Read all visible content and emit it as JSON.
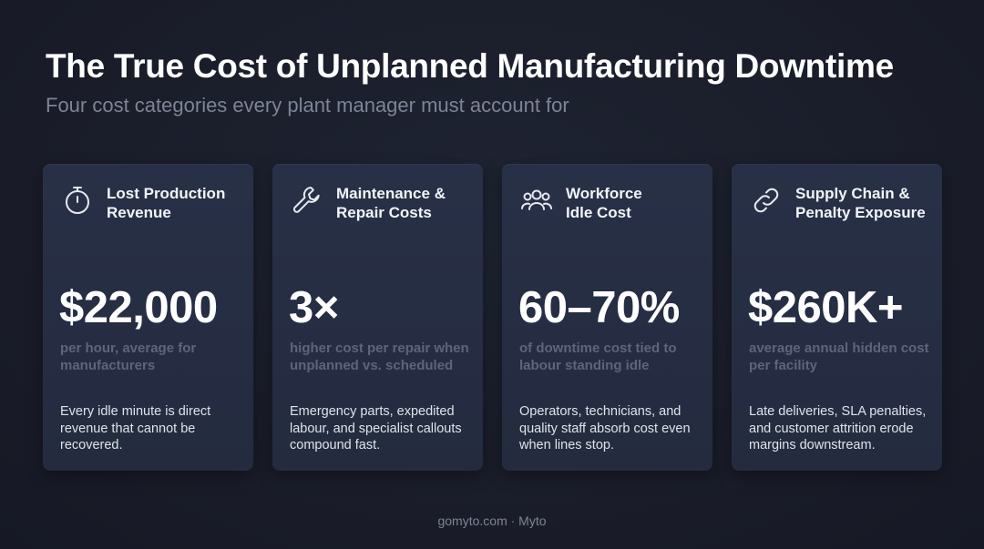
{
  "header": {
    "title": "The True Cost of Unplanned Manufacturing Downtime",
    "subtitle": "Four cost categories every plant manager must account for"
  },
  "cards": [
    {
      "icon": "stopwatch-icon",
      "title": "Lost Production\nRevenue",
      "stat": "$22,000",
      "stat_desc": "per hour, average for manufacturers",
      "body": "Every idle minute is direct revenue that cannot be recovered."
    },
    {
      "icon": "wrench-icon",
      "title": "Maintenance &\nRepair Costs",
      "stat": "3×",
      "stat_desc": "higher cost per repair when unplanned vs. scheduled",
      "body": "Emergency parts, expedited labour, and specialist callouts compound fast."
    },
    {
      "icon": "users-icon",
      "title": "Workforce\nIdle Cost",
      "stat": "60–70%",
      "stat_desc": "of downtime cost tied to labour standing idle",
      "body": "Operators, technicians, and quality staff absorb cost even when lines stop."
    },
    {
      "icon": "link-icon",
      "title": "Supply Chain &\nPenalty Exposure",
      "stat": "$260K+",
      "stat_desc": "average annual hidden cost per facility",
      "body": "Late deliveries, SLA penalties, and customer attrition erode margins downstream."
    }
  ],
  "footer": {
    "text": "gomyto.com · Myto"
  }
}
